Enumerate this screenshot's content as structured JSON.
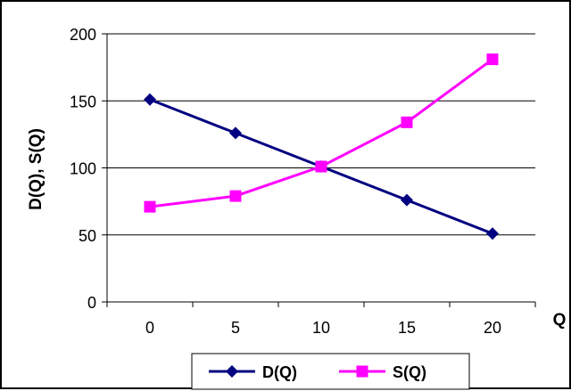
{
  "chart_data": {
    "type": "line",
    "categories": [
      "0",
      "5",
      "10",
      "15",
      "20"
    ],
    "series": [
      {
        "name": "D(Q)",
        "values": [
          151,
          126,
          101,
          76,
          51
        ],
        "color": "#000080",
        "marker": "diamond"
      },
      {
        "name": "S(Q)",
        "values": [
          71,
          79,
          101,
          134,
          181
        ],
        "color": "#ff00ff",
        "marker": "square"
      }
    ],
    "title": "",
    "xlabel": "Q",
    "ylabel": "D(Q), S(Q)",
    "ylim": [
      0,
      200
    ],
    "yticks": [
      "0",
      "50",
      "100",
      "150",
      "200"
    ],
    "grid": true,
    "legend": "bottom-center"
  }
}
